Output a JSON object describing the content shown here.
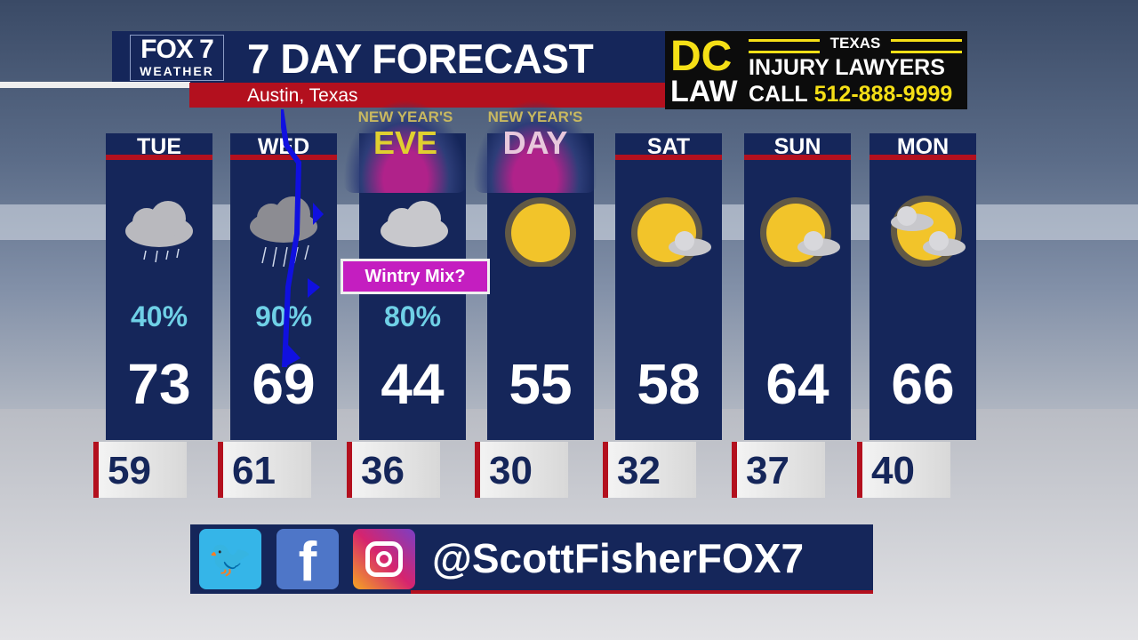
{
  "header": {
    "logo_top": "FOX 7",
    "logo_bottom": "WEATHER",
    "title": "7 DAY FORECAST",
    "location": "Austin, Texas"
  },
  "ad": {
    "dc": "DC",
    "law": "LAW",
    "texas": "TEXAS",
    "injury": "INJURY LAWYERS",
    "call": "CALL",
    "phone": "512-888-9999"
  },
  "days": [
    {
      "label": "TUE",
      "precip": "40%",
      "high": "73",
      "low": "59",
      "icon": "rain-cloud-icon"
    },
    {
      "label": "WED",
      "precip": "90%",
      "high": "69",
      "low": "61",
      "icon": "heavy-rain-cloud-icon"
    },
    {
      "label": "",
      "precip": "80%",
      "high": "44",
      "low": "36",
      "icon": "cloudy-icon",
      "badge": "NEW YEAR'S EVE"
    },
    {
      "label": "",
      "precip": "",
      "high": "55",
      "low": "30",
      "icon": "sun-icon",
      "badge": "NEW YEAR'S DAY"
    },
    {
      "label": "SAT",
      "precip": "",
      "high": "58",
      "low": "32",
      "icon": "mostly-sunny-icon"
    },
    {
      "label": "SUN",
      "precip": "",
      "high": "64",
      "low": "37",
      "icon": "mostly-sunny-icon"
    },
    {
      "label": "MON",
      "precip": "",
      "high": "66",
      "low": "40",
      "icon": "partly-cloudy-icon"
    }
  ],
  "nye": {
    "top": "NEW YEAR'S",
    "bottom": "EVE"
  },
  "nyd": {
    "top": "NEW YEAR'S",
    "bottom": "DAY"
  },
  "wintry": "Wintry Mix?",
  "social": {
    "handle": "@ScottFisherFOX7",
    "icons": [
      "twitter-icon",
      "facebook-icon",
      "instagram-icon"
    ]
  },
  "colors": {
    "navy": "#15265a",
    "red": "#b3101e",
    "precip": "#6fd0e6",
    "badge": "#c41ec0",
    "ad_yellow": "#f5df16",
    "front": "#1010e0"
  }
}
